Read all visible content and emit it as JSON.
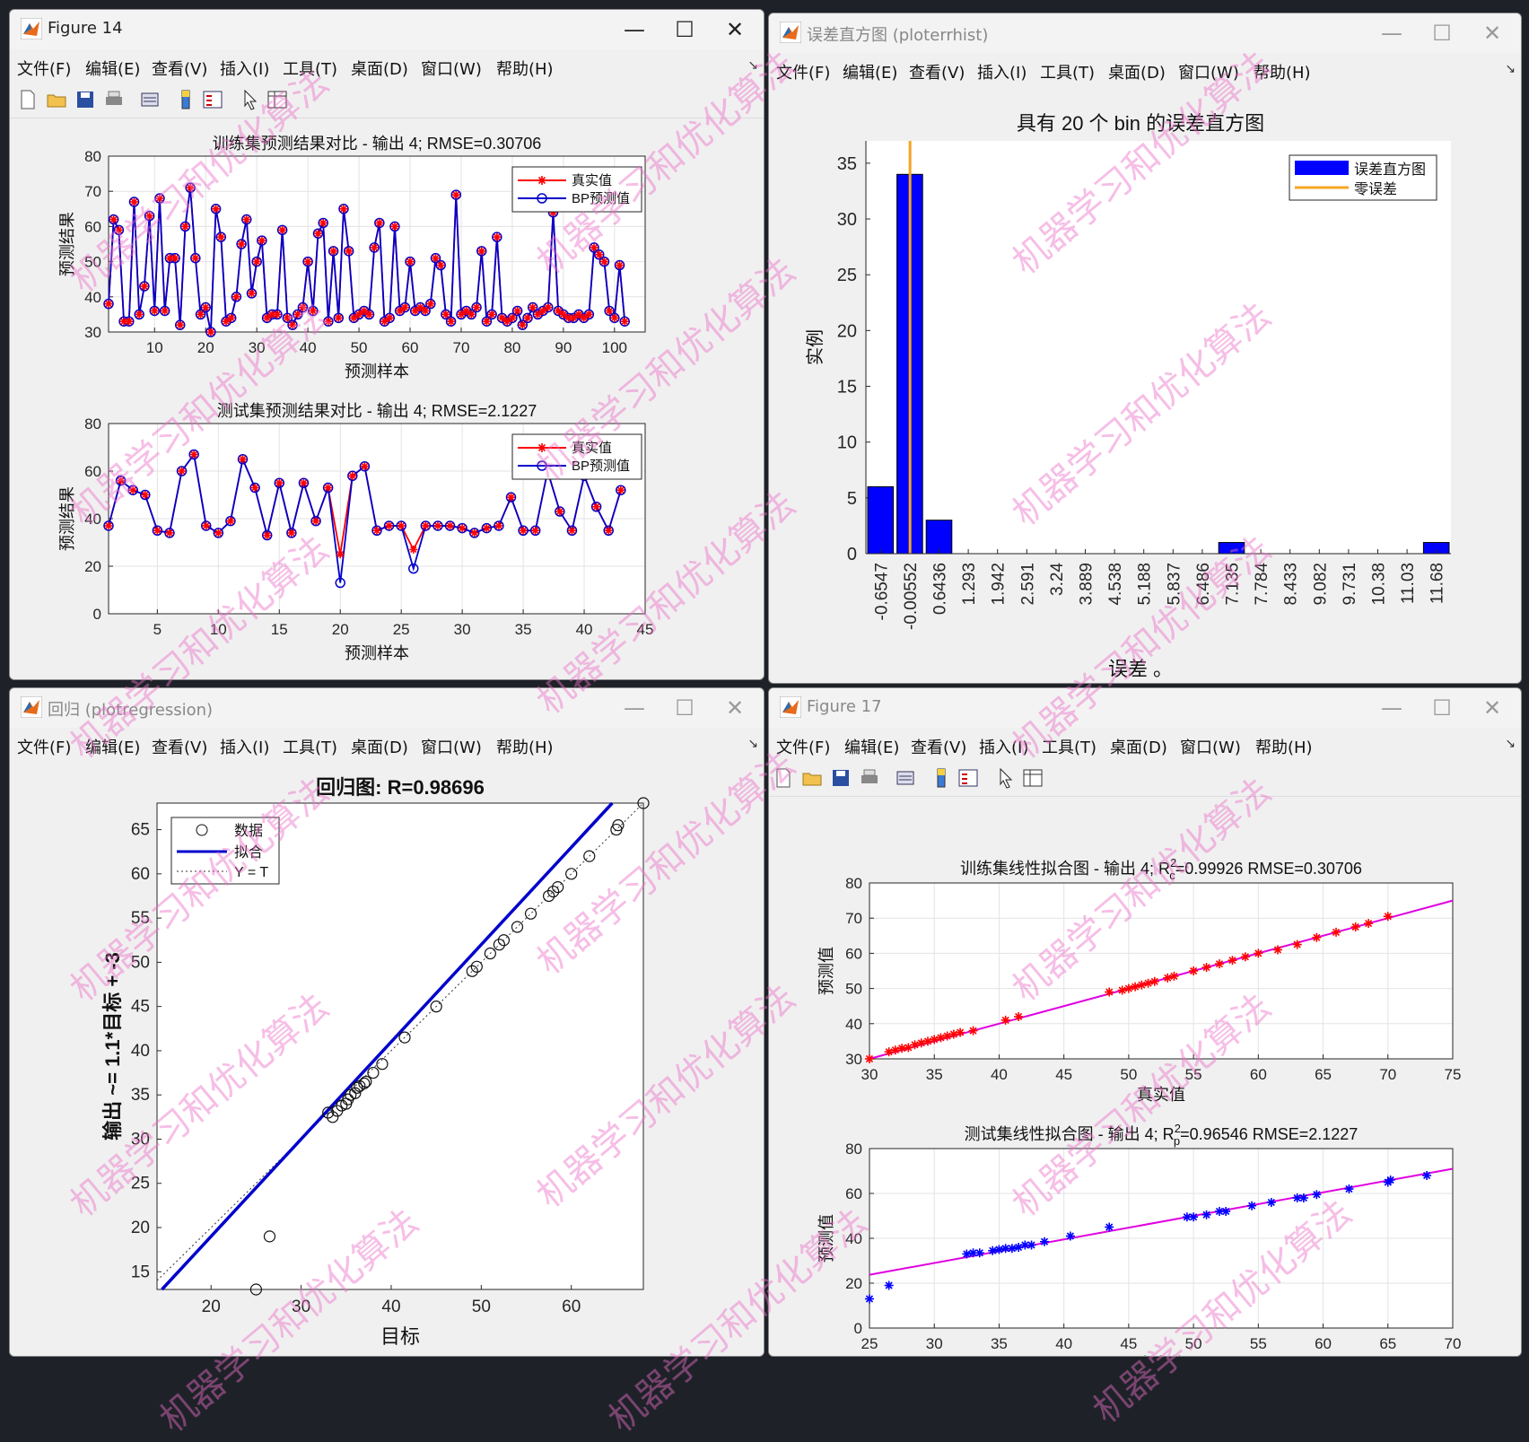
{
  "windows": {
    "fig14": {
      "title": "Figure 14",
      "menu": [
        "文件(F)",
        "编辑(E)",
        "查看(V)",
        "插入(I)",
        "工具(T)",
        "桌面(D)",
        "窗口(W)",
        "帮助(H)"
      ],
      "top_plot": {
        "title": "训练集预测结果对比 - 输出 4; RMSE=0.30706",
        "xlabel": "预测样本",
        "ylabel": "预测结果",
        "xticks": [
          "10",
          "20",
          "30",
          "40",
          "50",
          "60",
          "70",
          "80",
          "90",
          "100"
        ],
        "yticks": [
          "30",
          "40",
          "50",
          "60",
          "70",
          "80"
        ],
        "legend": [
          "真实值",
          "BP预测值"
        ]
      },
      "bottom_plot": {
        "title": "测试集预测结果对比 - 输出 4; RMSE=2.1227",
        "xlabel": "预测样本",
        "ylabel": "预测结果",
        "xticks": [
          "5",
          "10",
          "15",
          "20",
          "25",
          "30",
          "35",
          "40",
          "45"
        ],
        "yticks": [
          "0",
          "20",
          "40",
          "60",
          "80"
        ],
        "legend": [
          "真实值",
          "BP预测值"
        ]
      }
    },
    "hist": {
      "title": "误差直方图 (ploterrhist)",
      "menu": [
        "文件(F)",
        "编辑(E)",
        "查看(V)",
        "插入(I)",
        "工具(T)",
        "桌面(D)",
        "窗口(W)",
        "帮助(H)"
      ],
      "plot_title": "具有 20 个 bin 的误差直方图",
      "xlabel": "误差 。",
      "ylabel": "实例",
      "yticks": [
        "0",
        "5",
        "10",
        "15",
        "20",
        "25",
        "30",
        "35"
      ],
      "legend": [
        "误差直方图",
        "零误差"
      ]
    },
    "regr": {
      "title": "回归 (plotregression)",
      "menu": [
        "文件(F)",
        "编辑(E)",
        "查看(V)",
        "插入(I)",
        "工具(T)",
        "桌面(D)",
        "窗口(W)",
        "帮助(H)"
      ],
      "plot_title": "回归图: R=0.98696",
      "xlabel": "目标",
      "ylabel": "输出 ~= 1.1*目标 + -3",
      "xticks": [
        "20",
        "30",
        "40",
        "50",
        "60"
      ],
      "yticks": [
        "15",
        "20",
        "25",
        "30",
        "35",
        "40",
        "45",
        "50",
        "55",
        "60",
        "65"
      ],
      "legend": [
        "数据",
        "拟合",
        "Y = T"
      ]
    },
    "fig17": {
      "title": "Figure 17",
      "menu": [
        "文件(F)",
        "编辑(E)",
        "查看(V)",
        "插入(I)",
        "工具(T)",
        "桌面(D)",
        "窗口(W)",
        "帮助(H)"
      ],
      "top_plot": {
        "title_prefix": "训练集线性拟合图 - 输出 4; R",
        "title_sup": "2",
        "title_sub": "c",
        "title_suffix": "=0.99926  RMSE=0.30706",
        "xlabel": "真实值",
        "ylabel": "预测值",
        "xticks": [
          "30",
          "35",
          "40",
          "45",
          "50",
          "55",
          "60",
          "65",
          "70",
          "75"
        ],
        "yticks": [
          "30",
          "40",
          "50",
          "60",
          "70",
          "80"
        ]
      },
      "bottom_plot": {
        "title_prefix": "测试集线性拟合图 - 输出 4; R",
        "title_sup": "2",
        "title_sub": "p",
        "title_suffix": "=0.96546  RMSE=2.1227",
        "xlabel": "真实值",
        "ylabel": "预测值",
        "xticks": [
          "25",
          "30",
          "35",
          "40",
          "45",
          "50",
          "55",
          "60",
          "65",
          "70"
        ],
        "yticks": [
          "0",
          "20",
          "40",
          "60",
          "80"
        ]
      }
    }
  },
  "watermark": "机器学习和优化算法",
  "colors": {
    "true_series": "#ff0000",
    "pred_series": "#0000cc",
    "bar": "#0000ff",
    "zero_line": "#f5a623",
    "fit_line": "#e000e0"
  },
  "chart_data": [
    {
      "type": "line",
      "title": "训练集预测结果对比 - 输出 4; RMSE=0.30706",
      "xlim": [
        1,
        106
      ],
      "ylim": [
        30,
        80
      ],
      "x_start": 1,
      "series": [
        {
          "name": "真实值",
          "values": [
            38,
            62,
            59,
            33,
            33,
            67,
            35,
            43,
            63,
            36,
            68,
            36,
            51,
            51,
            32,
            60,
            71,
            51,
            35,
            37,
            30,
            65,
            57,
            33,
            34,
            40,
            55,
            62,
            41,
            50,
            56,
            34,
            35,
            35,
            59,
            34,
            32,
            35,
            37,
            50,
            36,
            58,
            61,
            33,
            53,
            34,
            65,
            53,
            34,
            35,
            36,
            35,
            54,
            61,
            33,
            34,
            60,
            36,
            37,
            50,
            36,
            37,
            36,
            38,
            51,
            49,
            35,
            33,
            69,
            35,
            36,
            35,
            37,
            53,
            33,
            35,
            57,
            34,
            33,
            34,
            36,
            32,
            34,
            37,
            35,
            36,
            37,
            64,
            36,
            35,
            34,
            34,
            35,
            34,
            35,
            54,
            52,
            50,
            36,
            34,
            49,
            33
          ]
        },
        {
          "name": "BP预测值",
          "values": [
            38,
            62,
            59,
            33,
            33,
            67,
            35,
            43,
            63,
            36,
            68,
            36,
            51,
            51,
            32,
            60,
            71,
            51,
            35,
            37,
            30,
            65,
            57,
            33,
            34,
            40,
            55,
            62,
            41,
            50,
            56,
            34,
            35,
            35,
            59,
            34,
            32,
            35,
            37,
            50,
            36,
            58,
            61,
            33,
            53,
            34,
            65,
            53,
            34,
            35,
            36,
            35,
            54,
            61,
            33,
            34,
            60,
            36,
            37,
            50,
            36,
            37,
            36,
            38,
            51,
            49,
            35,
            33,
            69,
            35,
            36,
            35,
            37,
            53,
            33,
            35,
            57,
            34,
            33,
            34,
            36,
            32,
            34,
            37,
            35,
            36,
            37,
            64,
            36,
            35,
            34,
            34,
            35,
            34,
            35,
            54,
            52,
            50,
            36,
            34,
            49,
            33
          ]
        }
      ],
      "xlabel": "预测样本",
      "ylabel": "预测结果",
      "legend": "top-right"
    },
    {
      "type": "line",
      "title": "测试集预测结果对比 - 输出 4; RMSE=2.1227",
      "xlim": [
        1,
        45
      ],
      "ylim": [
        0,
        80
      ],
      "x_start": 1,
      "series": [
        {
          "name": "真实值",
          "values": [
            37,
            56,
            52,
            50,
            35,
            34,
            60,
            67,
            37,
            34,
            39,
            65,
            53,
            33,
            55,
            34,
            55,
            39,
            53,
            25,
            58,
            62,
            35,
            37,
            37,
            27,
            37,
            37,
            37,
            36,
            34,
            36,
            37,
            49,
            35,
            35,
            60,
            43,
            35,
            58,
            45,
            35,
            52
          ]
        },
        {
          "name": "BP预测值",
          "values": [
            37,
            56,
            52,
            50,
            35,
            34,
            60,
            67,
            37,
            34,
            39,
            65,
            53,
            33,
            55,
            34,
            55,
            39,
            53,
            13,
            58,
            62,
            35,
            37,
            37,
            19,
            37,
            37,
            37,
            36,
            34,
            36,
            37,
            49,
            35,
            35,
            60,
            43,
            35,
            58,
            45,
            35,
            52
          ]
        }
      ],
      "xlabel": "预测样本",
      "ylabel": "预测结果",
      "legend": "top-right"
    },
    {
      "type": "bar",
      "title": "具有 20 个 bin 的误差直方图",
      "categories": [
        "-0.6547",
        "-0.00552",
        "0.6436",
        "1.293",
        "1.942",
        "2.591",
        "3.24",
        "3.889",
        "4.538",
        "5.188",
        "5.837",
        "6.486",
        "7.135",
        "7.784",
        "8.433",
        "9.082",
        "9.731",
        "10.38",
        "11.03",
        "11.68"
      ],
      "values": [
        6,
        34,
        3,
        0,
        0,
        0,
        0,
        0,
        0,
        0,
        0,
        0,
        1,
        0,
        0,
        0,
        0,
        0,
        0,
        1
      ],
      "zero_error_x": 0,
      "xlabel": "误差 。",
      "ylabel": "实例",
      "ylim": [
        0,
        37
      ],
      "legend": "top-right"
    },
    {
      "type": "scatter",
      "title": "回归图: R=0.98696",
      "xlim": [
        14,
        68
      ],
      "ylim": [
        13,
        68
      ],
      "points": [
        [
          25,
          13
        ],
        [
          26.5,
          19
        ],
        [
          33,
          33
        ],
        [
          33.5,
          32.5
        ],
        [
          34,
          33.2
        ],
        [
          34.5,
          33.8
        ],
        [
          35,
          34
        ],
        [
          35.2,
          34.5
        ],
        [
          35.5,
          35
        ],
        [
          36,
          35.2
        ],
        [
          36.2,
          35.8
        ],
        [
          36.5,
          36
        ],
        [
          37,
          36.3
        ],
        [
          37.2,
          36.5
        ],
        [
          38,
          37.5
        ],
        [
          39,
          38.5
        ],
        [
          41.5,
          41.5
        ],
        [
          45,
          45
        ],
        [
          49,
          49
        ],
        [
          49.5,
          49.5
        ],
        [
          51,
          51
        ],
        [
          52,
          52
        ],
        [
          52.5,
          52.5
        ],
        [
          54,
          54
        ],
        [
          55.5,
          55.5
        ],
        [
          57.5,
          57.5
        ],
        [
          58,
          58
        ],
        [
          58.5,
          58.5
        ],
        [
          60,
          60
        ],
        [
          62,
          62
        ],
        [
          65,
          65
        ],
        [
          65.2,
          65.5
        ],
        [
          68,
          68
        ]
      ],
      "fit": {
        "slope": 1.1,
        "intercept": -3
      },
      "xlabel": "目标",
      "ylabel": "输出 ~= 1.1*目标 + -3",
      "legend": "top-left"
    },
    {
      "type": "scatter",
      "title": "训练集线性拟合图 - 输出 4; R2c=0.99926  RMSE=0.30706",
      "xlim": [
        30,
        75
      ],
      "ylim": [
        30,
        80
      ],
      "points": [
        [
          30,
          30
        ],
        [
          31.5,
          32
        ],
        [
          32,
          32.5
        ],
        [
          32.5,
          33
        ],
        [
          33,
          33.2
        ],
        [
          33.5,
          34
        ],
        [
          34,
          34.5
        ],
        [
          34.5,
          35
        ],
        [
          35,
          35.5
        ],
        [
          35.5,
          36
        ],
        [
          36,
          36.5
        ],
        [
          36.5,
          37
        ],
        [
          37,
          37.5
        ],
        [
          38,
          38
        ],
        [
          40.5,
          41
        ],
        [
          41.5,
          42
        ],
        [
          48.5,
          49
        ],
        [
          49.5,
          49.5
        ],
        [
          50,
          50
        ],
        [
          50.5,
          50.5
        ],
        [
          51,
          51
        ],
        [
          51.5,
          51.5
        ],
        [
          52,
          52
        ],
        [
          53,
          53
        ],
        [
          53.5,
          53.5
        ],
        [
          55,
          55
        ],
        [
          56,
          56
        ],
        [
          57,
          57
        ],
        [
          58,
          58
        ],
        [
          59,
          59
        ],
        [
          60,
          60
        ],
        [
          61.5,
          61
        ],
        [
          63,
          62.5
        ],
        [
          64.5,
          64.5
        ],
        [
          66,
          66
        ],
        [
          67.5,
          67.5
        ],
        [
          68.5,
          68.5
        ],
        [
          70,
          70.5
        ]
      ],
      "fit": {
        "slope": 1.0,
        "intercept": 0
      },
      "xlabel": "真实值",
      "ylabel": "预测值"
    },
    {
      "type": "scatter",
      "title": "测试集线性拟合图 - 输出 4; R2p=0.96546  RMSE=2.1227",
      "xlim": [
        25,
        70
      ],
      "ylim": [
        0,
        80
      ],
      "points": [
        [
          25,
          13
        ],
        [
          26.5,
          19
        ],
        [
          32.5,
          33
        ],
        [
          33,
          33.5
        ],
        [
          33.5,
          33.5
        ],
        [
          34.5,
          34.5
        ],
        [
          35,
          35
        ],
        [
          35.5,
          35.5
        ],
        [
          36,
          35.5
        ],
        [
          36.5,
          36
        ],
        [
          37,
          37
        ],
        [
          37.5,
          37
        ],
        [
          38.5,
          38.5
        ],
        [
          40.5,
          41
        ],
        [
          43.5,
          45
        ],
        [
          49.5,
          49.5
        ],
        [
          50,
          49.5
        ],
        [
          51,
          50.5
        ],
        [
          52,
          52
        ],
        [
          52.5,
          52
        ],
        [
          54.5,
          54.5
        ],
        [
          56,
          56
        ],
        [
          58,
          58
        ],
        [
          58.5,
          58
        ],
        [
          59.5,
          59.5
        ],
        [
          62,
          62
        ],
        [
          65,
          65
        ],
        [
          65.2,
          66
        ],
        [
          68,
          68
        ]
      ],
      "fit": {
        "slope": 1.05,
        "intercept": -2.5
      },
      "xlabel": "真实值",
      "ylabel": "预测值"
    }
  ]
}
